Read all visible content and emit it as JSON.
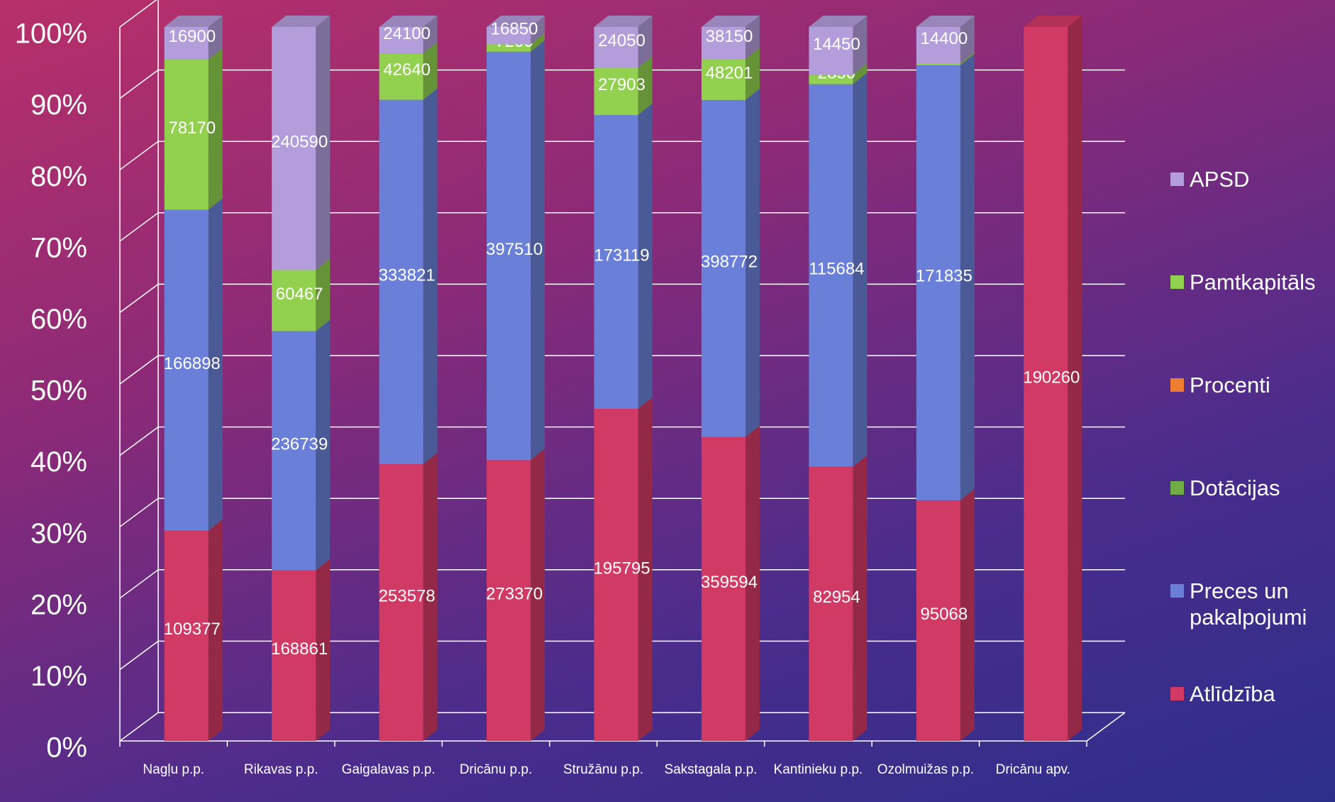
{
  "chart_data": {
    "type": "stacked_bar_100",
    "categories": [
      "Nagļu p.p.",
      "Rikavas p.p.",
      "Gaigalavas p.p.",
      "Dricānu p.p.",
      "Stružānu p.p.",
      "Sakstagala p.p.",
      "Kantinieku p.p.",
      "Ozolmuižas p.p.",
      "Dricānu apv."
    ],
    "series": [
      {
        "name": "Atlīdzība",
        "color": "#d23a66",
        "values": [
          109377,
          168861,
          253578,
          273370,
          195795,
          359594,
          82954,
          95068,
          190260
        ]
      },
      {
        "name": "Preces un pakalpojumi",
        "color": "#6a80d8",
        "values": [
          166898,
          236739,
          333821,
          397510,
          173119,
          398772,
          115684,
          171835,
          null
        ]
      },
      {
        "name": "Dotācijas",
        "color": "#70ad47",
        "values": [
          null,
          null,
          null,
          null,
          null,
          null,
          null,
          null,
          null
        ]
      },
      {
        "name": "Procenti",
        "color": "#ed7d31",
        "values": [
          null,
          null,
          null,
          null,
          null,
          null,
          null,
          null,
          null
        ]
      },
      {
        "name": "Pamtkapitāls",
        "color": "#92d050",
        "values": [
          78170,
          60467,
          42640,
          7200,
          27903,
          48201,
          2850,
          700,
          null
        ]
      },
      {
        "name": "APSD",
        "color": "#b39ddb",
        "values": [
          16900,
          240590,
          24100,
          16850,
          24050,
          38150,
          14450,
          14400,
          null
        ]
      }
    ],
    "ylim": [
      0,
      100
    ],
    "yticks": [
      {
        "value": 0,
        "label": "0%"
      },
      {
        "value": 10,
        "label": "10%"
      },
      {
        "value": 20,
        "label": "20%"
      },
      {
        "value": 30,
        "label": "30%"
      },
      {
        "value": 40,
        "label": "40%"
      },
      {
        "value": 50,
        "label": "50%"
      },
      {
        "value": 60,
        "label": "60%"
      },
      {
        "value": 70,
        "label": "70%"
      },
      {
        "value": 80,
        "label": "80%"
      },
      {
        "value": 90,
        "label": "90%"
      },
      {
        "value": 100,
        "label": "100%"
      }
    ],
    "grid": true,
    "legend": "right"
  }
}
